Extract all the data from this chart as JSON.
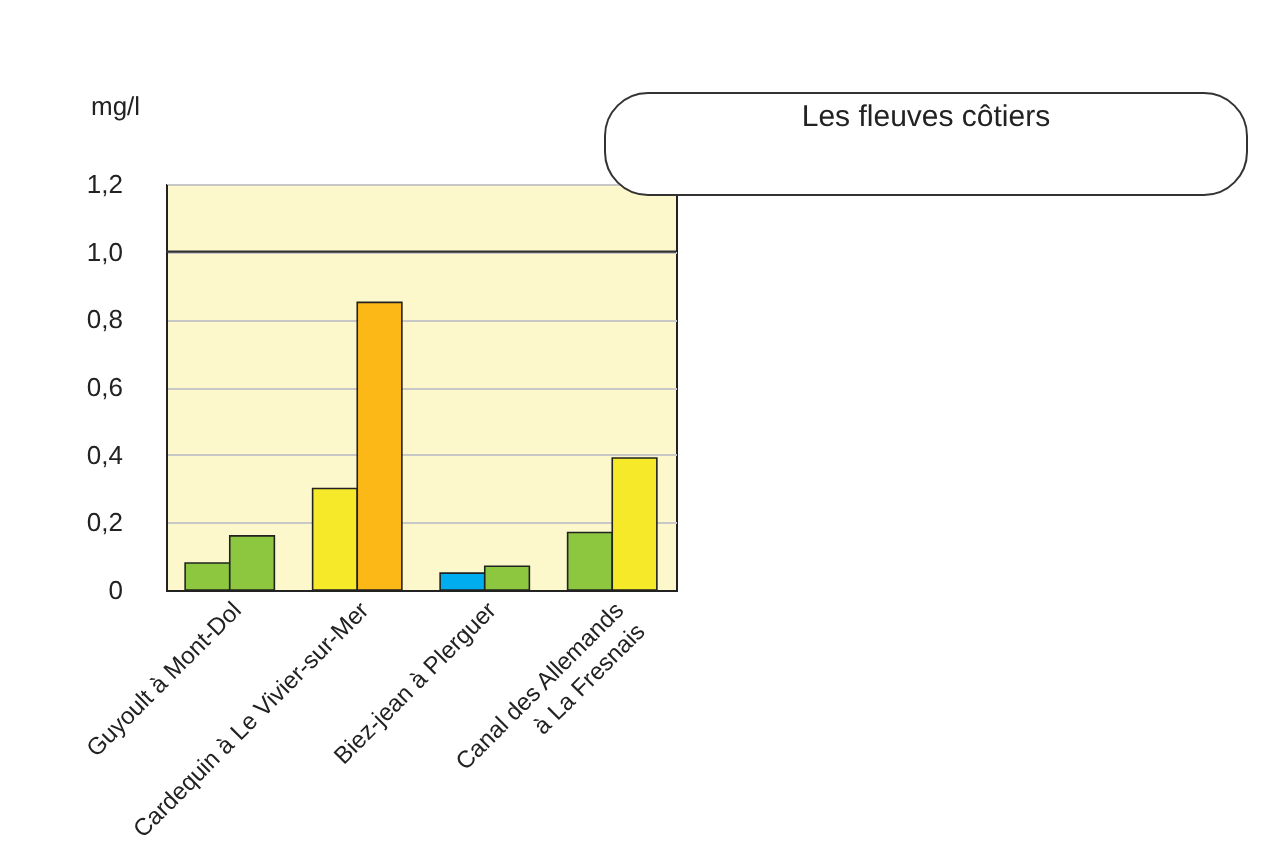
{
  "chart_data": {
    "type": "bar",
    "title": "Les fleuves côtiers",
    "ylabel": "mg/l",
    "categories": [
      "Guyoult à Mont-Dol",
      "Cardequin à Le Vivier-sur-Mer",
      "Biez-jean à Plerguer",
      "Canal des Allemands\nà La Fresnais"
    ],
    "series": [
      {
        "values": [
          0.08,
          0.3,
          0.05,
          0.17
        ],
        "colors": [
          "#8dc63f",
          "#f5e92a",
          "#00aeef",
          "#8dc63f"
        ]
      },
      {
        "values": [
          0.16,
          0.85,
          0.07,
          0.39
        ],
        "colors": [
          "#8dc63f",
          "#fbb817",
          "#8dc63f",
          "#f5e92a"
        ]
      }
    ],
    "ylim": [
      0,
      1.2
    ],
    "yticks": [
      0,
      {
        "value": 0.2,
        "label": "0,2"
      },
      {
        "value": 0.4,
        "label": "0,4"
      },
      {
        "value": 0.6,
        "label": "0,6"
      },
      {
        "value": 0.8,
        "label": "0,8"
      },
      {
        "value": 1.0,
        "label": "1,0"
      },
      {
        "value": 1.2,
        "label": "1,2"
      }
    ],
    "ref_lines": [
      {
        "axis": "y",
        "value": 1.0,
        "color": "#333333"
      }
    ],
    "grid": "y"
  }
}
